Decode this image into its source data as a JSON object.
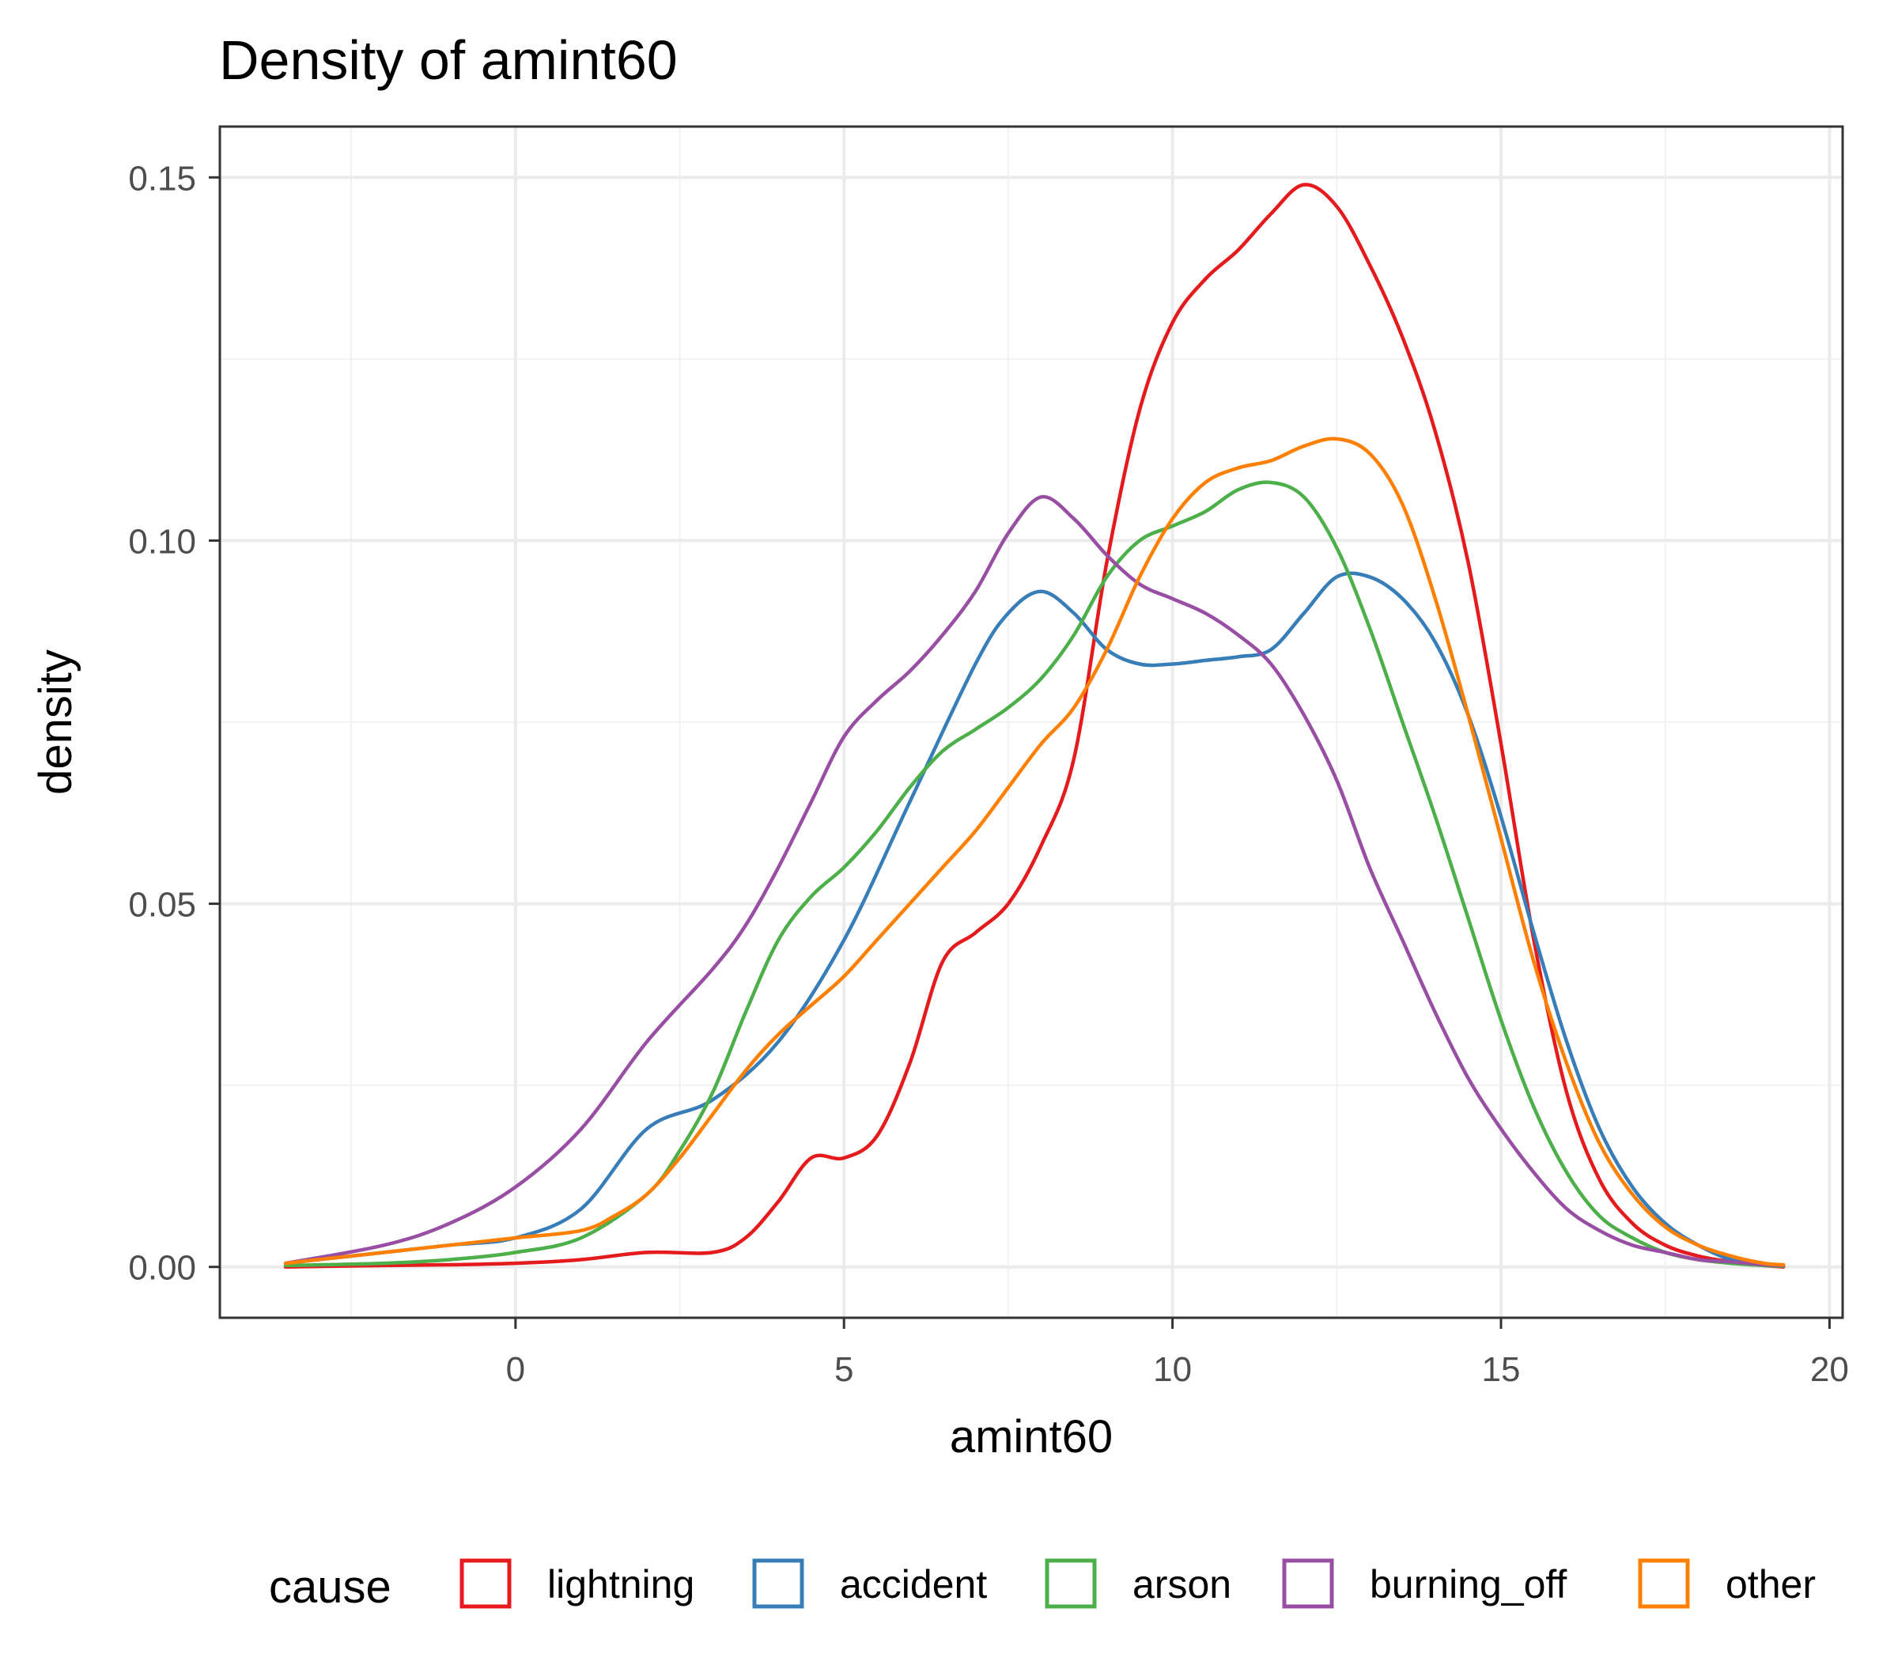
{
  "chart_data": {
    "type": "line",
    "title": "Density of amint60",
    "xlabel": "amint60",
    "ylabel": "density",
    "xlim": [
      -4.5,
      20.2
    ],
    "ylim": [
      -0.007,
      0.157
    ],
    "x_ticks": [
      0,
      5,
      10,
      15,
      20
    ],
    "x_tick_labels": [
      "0",
      "5",
      "10",
      "15",
      "20"
    ],
    "y_ticks": [
      0,
      0.05,
      0.1,
      0.15
    ],
    "y_tick_labels": [
      "0.00",
      "0.05",
      "0.10",
      "0.15"
    ],
    "grid": true,
    "legend": {
      "title": "cause",
      "placement": "bottom"
    },
    "series": [
      {
        "name": "lightning",
        "color": "#e41a1c",
        "x": [
          -3.5,
          -2,
          -1,
          0,
          1,
          2,
          3,
          3.5,
          4,
          4.5,
          5,
          5.5,
          6,
          6.5,
          7,
          7.5,
          8,
          8.5,
          9,
          9.5,
          10,
          10.5,
          11,
          11.5,
          12,
          12.5,
          13,
          13.5,
          14,
          14.5,
          15,
          15.5,
          16,
          16.5,
          17,
          17.5,
          18,
          18.5,
          19,
          19.3
        ],
        "y": [
          0,
          0.0002,
          0.0003,
          0.0005,
          0.001,
          0.002,
          0.002,
          0.004,
          0.009,
          0.015,
          0.015,
          0.018,
          0.028,
          0.042,
          0.046,
          0.05,
          0.058,
          0.07,
          0.097,
          0.118,
          0.13,
          0.136,
          0.14,
          0.145,
          0.149,
          0.146,
          0.138,
          0.128,
          0.115,
          0.097,
          0.072,
          0.045,
          0.024,
          0.012,
          0.006,
          0.003,
          0.0015,
          0.0007,
          0.0002,
          0
        ]
      },
      {
        "name": "accident",
        "color": "#377eb8",
        "x": [
          -3.5,
          -2,
          -1,
          0,
          1,
          2,
          3,
          4,
          5,
          6,
          7,
          7.5,
          8,
          8.5,
          9,
          9.5,
          10,
          10.5,
          11,
          11.5,
          12,
          12.5,
          13,
          13.5,
          14,
          14.5,
          15,
          15.5,
          16,
          16.5,
          17,
          17.5,
          18,
          18.5,
          19,
          19.3
        ],
        "y": [
          0.0005,
          0.002,
          0.003,
          0.004,
          0.008,
          0.019,
          0.023,
          0.031,
          0.045,
          0.064,
          0.083,
          0.09,
          0.093,
          0.09,
          0.085,
          0.083,
          0.083,
          0.0835,
          0.084,
          0.085,
          0.09,
          0.095,
          0.095,
          0.092,
          0.086,
          0.076,
          0.062,
          0.046,
          0.031,
          0.019,
          0.011,
          0.006,
          0.003,
          0.001,
          0.0003,
          0.0002
        ]
      },
      {
        "name": "arson",
        "color": "#4daf4a",
        "x": [
          -3.5,
          -2,
          -1,
          0,
          1,
          2,
          2.5,
          3,
          3.5,
          4,
          4.5,
          5,
          5.5,
          6,
          6.5,
          7,
          7.5,
          8,
          8.5,
          9,
          9.5,
          10,
          10.5,
          11,
          11.5,
          12,
          12.5,
          13,
          13.5,
          14,
          14.5,
          15,
          15.5,
          16,
          16.5,
          17,
          17.5,
          18,
          18.5,
          19,
          19.3
        ],
        "y": [
          0.0002,
          0.0005,
          0.001,
          0.002,
          0.004,
          0.01,
          0.016,
          0.024,
          0.035,
          0.045,
          0.051,
          0.055,
          0.06,
          0.066,
          0.071,
          0.074,
          0.077,
          0.081,
          0.087,
          0.095,
          0.1,
          0.102,
          0.104,
          0.107,
          0.108,
          0.106,
          0.099,
          0.088,
          0.075,
          0.062,
          0.048,
          0.034,
          0.022,
          0.013,
          0.007,
          0.004,
          0.002,
          0.001,
          0.0005,
          0.0002,
          0.0001
        ]
      },
      {
        "name": "burning_off",
        "color": "#984ea3",
        "x": [
          -3.5,
          -2,
          -1,
          0,
          1,
          2,
          3,
          3.5,
          4,
          4.5,
          5,
          5.5,
          6,
          6.5,
          7,
          7.5,
          8,
          8.5,
          9,
          9.5,
          10,
          10.5,
          11,
          11.5,
          12,
          12.5,
          13,
          13.5,
          14,
          14.5,
          15,
          15.5,
          16,
          16.5,
          17,
          17.5,
          18,
          18.5,
          19,
          19.3
        ],
        "y": [
          0.0005,
          0.003,
          0.006,
          0.011,
          0.019,
          0.031,
          0.041,
          0.047,
          0.055,
          0.064,
          0.073,
          0.078,
          0.082,
          0.087,
          0.093,
          0.101,
          0.106,
          0.103,
          0.098,
          0.094,
          0.092,
          0.09,
          0.087,
          0.083,
          0.076,
          0.067,
          0.055,
          0.045,
          0.035,
          0.026,
          0.019,
          0.013,
          0.008,
          0.005,
          0.003,
          0.002,
          0.001,
          0.0007,
          0.0003,
          0.0002
        ]
      },
      {
        "name": "other",
        "color": "#ff7f00",
        "x": [
          -3.5,
          -2,
          -1,
          0,
          1,
          1.5,
          2,
          2.5,
          3,
          3.5,
          4,
          4.5,
          5,
          5.5,
          6,
          6.5,
          7,
          7.5,
          8,
          8.5,
          9,
          9.5,
          10,
          10.5,
          11,
          11.5,
          12,
          12.5,
          13,
          13.5,
          14,
          14.5,
          15,
          15.5,
          16,
          16.5,
          17,
          17.5,
          18,
          18.5,
          19,
          19.3
        ],
        "y": [
          0.0005,
          0.002,
          0.003,
          0.004,
          0.005,
          0.007,
          0.01,
          0.015,
          0.021,
          0.027,
          0.032,
          0.036,
          0.04,
          0.045,
          0.05,
          0.055,
          0.06,
          0.066,
          0.072,
          0.077,
          0.085,
          0.095,
          0.103,
          0.108,
          0.11,
          0.111,
          0.113,
          0.114,
          0.112,
          0.105,
          0.092,
          0.076,
          0.059,
          0.042,
          0.028,
          0.017,
          0.01,
          0.0055,
          0.003,
          0.0015,
          0.0005,
          0.0003
        ]
      }
    ]
  }
}
